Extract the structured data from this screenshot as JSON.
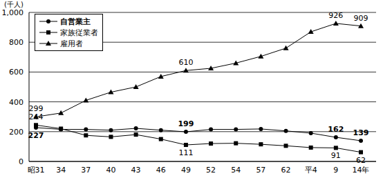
{
  "chart_data": {
    "type": "line",
    "y_label": "(千人)",
    "categories": [
      "昭31",
      "34",
      "37",
      "40",
      "43",
      "46",
      "49",
      "52",
      "54",
      "57",
      "62",
      "平4",
      "9",
      "14年"
    ],
    "series": [
      {
        "name": "自営業主",
        "color": "#000000",
        "marker": "circle",
        "values": [
          227,
          215,
          215,
          210,
          222,
          210,
          199,
          215,
          215,
          218,
          205,
          190,
          162,
          139
        ],
        "value_labels": [
          "227",
          null,
          null,
          null,
          null,
          null,
          "199",
          null,
          null,
          null,
          null,
          null,
          "162",
          "139"
        ]
      },
      {
        "name": "家族従業者",
        "color": "#000000",
        "marker": "square",
        "values": [
          244,
          220,
          175,
          165,
          180,
          150,
          111,
          120,
          122,
          115,
          105,
          93,
          91,
          62
        ],
        "value_labels": [
          "244",
          null,
          null,
          null,
          null,
          null,
          "111",
          null,
          null,
          null,
          null,
          null,
          "91",
          "62"
        ]
      },
      {
        "name": "雇用者",
        "color": "#000000",
        "marker": "triangle",
        "values": [
          299,
          325,
          410,
          465,
          500,
          570,
          610,
          625,
          660,
          705,
          760,
          870,
          926,
          909
        ],
        "value_labels": [
          "299",
          null,
          null,
          null,
          null,
          null,
          "610",
          null,
          null,
          null,
          null,
          null,
          "926",
          "909"
        ]
      }
    ],
    "ylim": [
      0,
      1000
    ],
    "yticks": [
      0,
      200,
      400,
      600,
      {
        "value": 800,
        "label": "800"
      },
      {
        "value": 1000,
        "label": "1,000"
      }
    ],
    "grid": true,
    "legend": "top-left",
    "data_labels": true
  }
}
